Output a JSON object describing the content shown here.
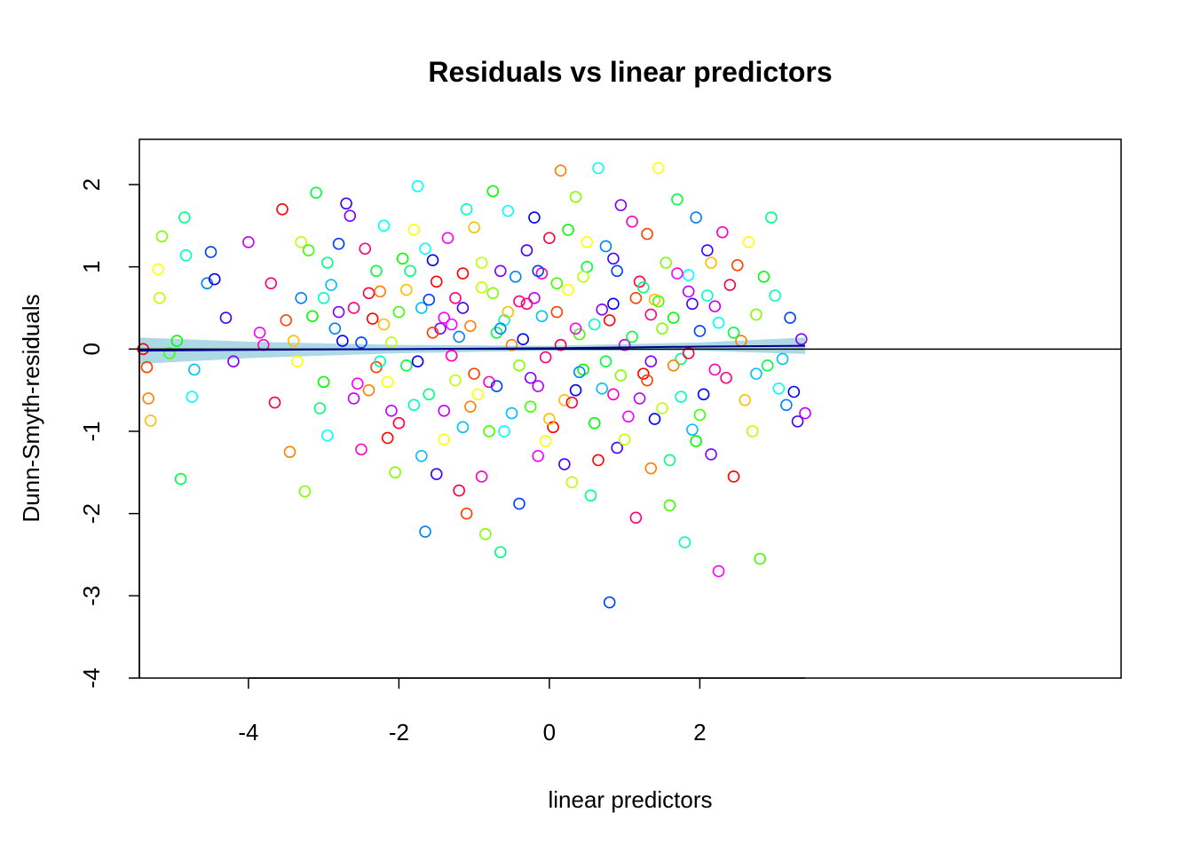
{
  "chart_data": {
    "type": "scatter",
    "title": "Residuals vs linear predictors",
    "xlabel": "linear predictors",
    "ylabel": "Dunn-Smyth-residuals",
    "xlim": [
      -5.45,
      7.6
    ],
    "ylim": [
      -4.0,
      2.55
    ],
    "x_ticks": [
      -4,
      -2,
      0,
      2
    ],
    "x_tick_labels": [
      "-4",
      "-2",
      "0",
      "2"
    ],
    "y_ticks": [
      2,
      1,
      0,
      -1,
      -2,
      -3,
      -4
    ],
    "y_tick_labels": [
      "2",
      "1",
      "0",
      "-1",
      "-2",
      "-3",
      "-4"
    ],
    "x_axis_extends_to": 3.4,
    "grid": false,
    "legend": "none",
    "zero_line": {
      "y": 0,
      "color": "#000000"
    },
    "smooth_line": {
      "color": "#00008b",
      "band_color": "#add8e6",
      "x": [
        -5.45,
        -4,
        -2,
        0,
        2,
        3.4
      ],
      "y": [
        -0.02,
        -0.01,
        0.0,
        0.01,
        0.03,
        0.04
      ],
      "band_halfwidth": [
        0.16,
        0.1,
        0.05,
        0.03,
        0.05,
        0.1
      ]
    },
    "point_colors": [
      "#ff0000",
      "#ff4000",
      "#ff8000",
      "#ffbf00",
      "#ffff00",
      "#bfff00",
      "#80ff00",
      "#40ff00",
      "#00ff00",
      "#00ff40",
      "#00ff80",
      "#00ffbf",
      "#00ffff",
      "#00bfff",
      "#0080ff",
      "#0040ff",
      "#0000ff",
      "#4000ff",
      "#8000ff",
      "#bf00ff",
      "#ff00ff",
      "#ff00bf",
      "#ff0080",
      "#ff0040"
    ],
    "points": [
      [
        -5.4,
        0.0
      ],
      [
        -5.35,
        -0.22
      ],
      [
        -5.33,
        -0.6
      ],
      [
        -5.3,
        -0.87
      ],
      [
        -5.2,
        0.97
      ],
      [
        -5.18,
        0.62
      ],
      [
        -5.15,
        1.37
      ],
      [
        -5.05,
        -0.05
      ],
      [
        -4.95,
        0.1
      ],
      [
        -4.9,
        -1.58
      ],
      [
        -4.85,
        1.6
      ],
      [
        -4.83,
        1.14
      ],
      [
        -4.75,
        -0.58
      ],
      [
        -4.72,
        -0.25
      ],
      [
        -4.55,
        0.8
      ],
      [
        -4.5,
        1.18
      ],
      [
        -4.45,
        0.85
      ],
      [
        -4.3,
        0.38
      ],
      [
        -4.2,
        -0.15
      ],
      [
        -4.0,
        1.3
      ],
      [
        -3.85,
        0.2
      ],
      [
        -3.8,
        0.05
      ],
      [
        -3.7,
        0.8
      ],
      [
        -3.65,
        -0.65
      ],
      [
        -3.55,
        1.7
      ],
      [
        -3.5,
        0.35
      ],
      [
        -3.45,
        -1.25
      ],
      [
        -3.4,
        0.1
      ],
      [
        -3.35,
        -0.15
      ],
      [
        -3.3,
        1.3
      ],
      [
        -3.25,
        -1.73
      ],
      [
        -3.2,
        1.2
      ],
      [
        -3.15,
        0.4
      ],
      [
        -3.1,
        1.9
      ],
      [
        -3.05,
        -0.72
      ],
      [
        -3.0,
        0.62
      ],
      [
        -2.95,
        -1.05
      ],
      [
        -2.9,
        0.78
      ],
      [
        -2.85,
        0.25
      ],
      [
        -2.8,
        1.28
      ],
      [
        -2.75,
        0.1
      ],
      [
        -2.7,
        1.77
      ],
      [
        -2.65,
        1.62
      ],
      [
        -2.6,
        -0.6
      ],
      [
        -2.55,
        -0.42
      ],
      [
        -2.5,
        -1.22
      ],
      [
        -2.45,
        1.22
      ],
      [
        -2.4,
        0.68
      ],
      [
        -2.35,
        0.37
      ],
      [
        -2.3,
        -0.22
      ],
      [
        -2.25,
        0.7
      ],
      [
        -2.2,
        0.3
      ],
      [
        -2.15,
        -0.4
      ],
      [
        -2.1,
        0.08
      ],
      [
        -2.05,
        -1.5
      ],
      [
        -2.0,
        0.45
      ],
      [
        -1.95,
        1.1
      ],
      [
        -1.9,
        -0.2
      ],
      [
        -1.85,
        0.95
      ],
      [
        -1.8,
        -0.68
      ],
      [
        -1.75,
        1.98
      ],
      [
        -1.7,
        0.5
      ],
      [
        -1.65,
        -2.22
      ],
      [
        -1.6,
        0.6
      ],
      [
        -1.55,
        1.08
      ],
      [
        -1.5,
        -1.52
      ],
      [
        -1.45,
        0.25
      ],
      [
        -1.4,
        -0.75
      ],
      [
        -1.35,
        1.35
      ],
      [
        -1.3,
        -0.08
      ],
      [
        -1.25,
        0.62
      ],
      [
        -1.2,
        -1.72
      ],
      [
        -1.15,
        0.92
      ],
      [
        -1.1,
        -2.0
      ],
      [
        -1.05,
        0.28
      ],
      [
        -1.0,
        1.48
      ],
      [
        -0.95,
        -0.55
      ],
      [
        -0.9,
        0.75
      ],
      [
        -0.85,
        -2.25
      ],
      [
        -0.8,
        -1.0
      ],
      [
        -0.75,
        1.92
      ],
      [
        -0.7,
        0.2
      ],
      [
        -0.65,
        -2.47
      ],
      [
        -0.6,
        0.35
      ],
      [
        -0.55,
        1.68
      ],
      [
        -0.5,
        -0.78
      ],
      [
        -0.45,
        0.88
      ],
      [
        -0.4,
        -1.88
      ],
      [
        -0.35,
        0.12
      ],
      [
        -0.3,
        1.2
      ],
      [
        -0.25,
        -0.35
      ],
      [
        -0.2,
        0.62
      ],
      [
        -0.15,
        -1.3
      ],
      [
        -0.1,
        0.92
      ],
      [
        -0.05,
        -0.1
      ],
      [
        0.0,
        1.35
      ],
      [
        0.05,
        -0.95
      ],
      [
        0.1,
        0.45
      ],
      [
        0.15,
        2.17
      ],
      [
        0.2,
        -0.62
      ],
      [
        0.25,
        0.72
      ],
      [
        0.3,
        -1.62
      ],
      [
        0.35,
        1.85
      ],
      [
        0.4,
        0.18
      ],
      [
        0.45,
        -0.25
      ],
      [
        0.5,
        1.0
      ],
      [
        0.55,
        -1.78
      ],
      [
        0.6,
        0.3
      ],
      [
        0.65,
        2.2
      ],
      [
        0.7,
        -0.48
      ],
      [
        0.75,
        1.25
      ],
      [
        0.8,
        -3.08
      ],
      [
        0.85,
        0.55
      ],
      [
        0.9,
        -1.2
      ],
      [
        0.95,
        1.75
      ],
      [
        1.0,
        0.05
      ],
      [
        1.05,
        -0.82
      ],
      [
        1.1,
        1.55
      ],
      [
        1.15,
        -2.05
      ],
      [
        1.2,
        0.82
      ],
      [
        1.25,
        -0.3
      ],
      [
        1.3,
        1.4
      ],
      [
        1.35,
        -1.45
      ],
      [
        1.4,
        0.6
      ],
      [
        1.45,
        2.2
      ],
      [
        1.5,
        -0.72
      ],
      [
        1.55,
        1.05
      ],
      [
        1.6,
        -1.9
      ],
      [
        1.65,
        0.38
      ],
      [
        1.7,
        1.82
      ],
      [
        1.75,
        -0.12
      ],
      [
        1.8,
        -2.35
      ],
      [
        1.85,
        0.9
      ],
      [
        1.9,
        -0.98
      ],
      [
        1.95,
        1.6
      ],
      [
        2.0,
        0.22
      ],
      [
        2.05,
        -0.55
      ],
      [
        2.1,
        1.2
      ],
      [
        2.15,
        -1.28
      ],
      [
        2.2,
        0.52
      ],
      [
        2.25,
        -2.7
      ],
      [
        2.3,
        1.42
      ],
      [
        2.35,
        -0.35
      ],
      [
        2.4,
        0.78
      ],
      [
        2.45,
        -1.55
      ],
      [
        2.5,
        1.02
      ],
      [
        2.55,
        0.1
      ],
      [
        2.6,
        -0.62
      ],
      [
        2.65,
        1.3
      ],
      [
        2.7,
        -1.0
      ],
      [
        2.75,
        0.42
      ],
      [
        2.8,
        -2.55
      ],
      [
        2.85,
        0.88
      ],
      [
        2.9,
        -0.2
      ],
      [
        2.95,
        1.6
      ],
      [
        3.0,
        0.65
      ],
      [
        3.05,
        -0.48
      ],
      [
        3.1,
        -0.12
      ],
      [
        3.15,
        -0.68
      ],
      [
        3.2,
        0.38
      ],
      [
        3.25,
        -0.52
      ],
      [
        3.3,
        -0.88
      ],
      [
        3.35,
        0.12
      ],
      [
        3.4,
        -0.78
      ],
      [
        -1.3,
        0.3
      ],
      [
        -0.8,
        -0.4
      ],
      [
        -0.3,
        0.55
      ],
      [
        0.3,
        -0.65
      ],
      [
        0.8,
        0.35
      ],
      [
        1.3,
        -0.38
      ],
      [
        -2.4,
        -0.5
      ],
      [
        -1.9,
        0.72
      ],
      [
        -1.4,
        -1.1
      ],
      [
        -0.9,
        1.05
      ],
      [
        -0.4,
        -0.2
      ],
      [
        0.1,
        0.8
      ],
      [
        0.6,
        -0.9
      ],
      [
        1.1,
        0.15
      ],
      [
        1.6,
        -1.35
      ],
      [
        2.1,
        0.65
      ],
      [
        -2.2,
        1.5
      ],
      [
        -1.7,
        -1.3
      ],
      [
        -1.2,
        0.15
      ],
      [
        -0.7,
        -0.45
      ],
      [
        -0.2,
        1.6
      ],
      [
        0.2,
        -1.4
      ],
      [
        0.7,
        0.48
      ],
      [
        1.2,
        -0.6
      ],
      [
        1.7,
        0.92
      ],
      [
        2.2,
        -0.25
      ],
      [
        -2.6,
        0.5
      ],
      [
        -2.0,
        -0.9
      ],
      [
        -1.5,
        0.82
      ],
      [
        -1.0,
        -0.3
      ],
      [
        -0.5,
        0.05
      ],
      [
        0.0,
        -0.85
      ],
      [
        0.5,
        1.3
      ],
      [
        1.0,
        -1.1
      ],
      [
        1.5,
        0.25
      ],
      [
        2.0,
        -0.8
      ],
      [
        -3.0,
        -0.4
      ],
      [
        -2.3,
        0.95
      ],
      [
        -1.6,
        -0.55
      ],
      [
        -1.1,
        1.7
      ],
      [
        -0.6,
        -1.0
      ],
      [
        -0.1,
        0.4
      ],
      [
        0.4,
        -0.28
      ],
      [
        0.9,
        0.95
      ],
      [
        1.4,
        -0.85
      ],
      [
        1.9,
        0.55
      ],
      [
        -2.8,
        0.45
      ],
      [
        -2.1,
        -0.75
      ],
      [
        -1.4,
        0.38
      ],
      [
        -0.9,
        -1.55
      ],
      [
        -0.4,
        0.58
      ],
      [
        0.15,
        0.05
      ],
      [
        0.65,
        -1.35
      ],
      [
        1.15,
        0.62
      ],
      [
        1.65,
        -0.2
      ],
      [
        2.15,
        1.05
      ],
      [
        -1.8,
        1.45
      ],
      [
        -1.25,
        -0.38
      ],
      [
        -0.75,
        0.68
      ],
      [
        -0.25,
        -0.7
      ],
      [
        0.25,
        1.45
      ],
      [
        0.75,
        -0.15
      ],
      [
        1.25,
        0.75
      ],
      [
        1.75,
        -0.58
      ],
      [
        2.25,
        0.32
      ],
      [
        2.75,
        -0.3
      ],
      [
        -3.3,
        0.62
      ],
      [
        -2.5,
        0.08
      ],
      [
        -1.75,
        -0.15
      ],
      [
        -1.15,
        0.5
      ],
      [
        -0.65,
        0.95
      ],
      [
        -0.15,
        -0.45
      ],
      [
        0.35,
        0.25
      ],
      [
        0.85,
        -0.55
      ],
      [
        1.35,
        0.42
      ],
      [
        1.85,
        -0.05
      ],
      [
        -2.15,
        -1.08
      ],
      [
        -1.55,
        0.2
      ],
      [
        -1.05,
        -0.7
      ],
      [
        -0.55,
        0.45
      ],
      [
        -0.05,
        -1.12
      ],
      [
        0.45,
        0.88
      ],
      [
        0.95,
        -0.32
      ],
      [
        1.45,
        0.58
      ],
      [
        1.95,
        -1.12
      ],
      [
        2.45,
        0.2
      ],
      [
        -2.95,
        1.05
      ],
      [
        -2.25,
        -0.15
      ],
      [
        -1.65,
        1.22
      ],
      [
        -1.15,
        -0.95
      ],
      [
        -0.65,
        0.25
      ],
      [
        -0.15,
        0.95
      ],
      [
        0.35,
        -0.5
      ],
      [
        0.85,
        1.1
      ],
      [
        1.35,
        -0.15
      ],
      [
        1.85,
        0.7
      ]
    ]
  }
}
